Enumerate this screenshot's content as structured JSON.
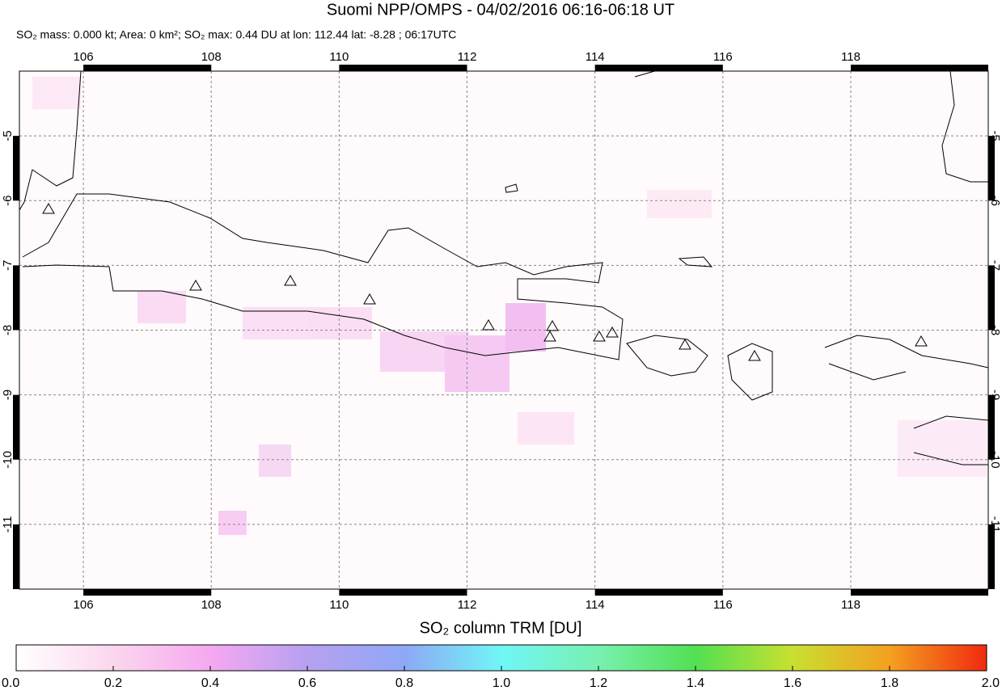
{
  "header": {
    "title": "Suomi NPP/OMPS - 04/02/2016 06:16-06:18 UT",
    "subtitle": "SO₂ mass: 0.000 kt; Area: 0 km²; SO₂ max: 0.44 DU at lon: 112.44 lat: -8.28 ; 06:17UTC"
  },
  "map": {
    "lon_ticks": [
      106,
      108,
      110,
      112,
      114,
      116,
      118
    ],
    "lat_ticks": [
      -5,
      -6,
      -7,
      -8,
      -9,
      -10,
      -11
    ],
    "lonlim": [
      105,
      120.15
    ],
    "latlim": [
      -4,
      -12
    ]
  },
  "colorbar": {
    "label": "SO₂ column TRM [DU]",
    "lim": [
      0,
      2
    ],
    "ticks": [
      {
        "value": 0,
        "label": "0.0"
      },
      {
        "value": 0.2,
        "label": "0.2"
      },
      {
        "value": 0.4,
        "label": "0.4"
      },
      {
        "value": 0.6,
        "label": "0.6"
      },
      {
        "value": 0.8,
        "label": "0.8"
      },
      {
        "value": 1,
        "label": "1.0"
      },
      {
        "value": 1.2,
        "label": "1.2"
      },
      {
        "value": 1.4,
        "label": "1.4"
      },
      {
        "value": 1.6,
        "label": "1.6"
      },
      {
        "value": 1.8,
        "label": "1.8"
      },
      {
        "value": 2,
        "label": "2.0"
      }
    ]
  }
}
